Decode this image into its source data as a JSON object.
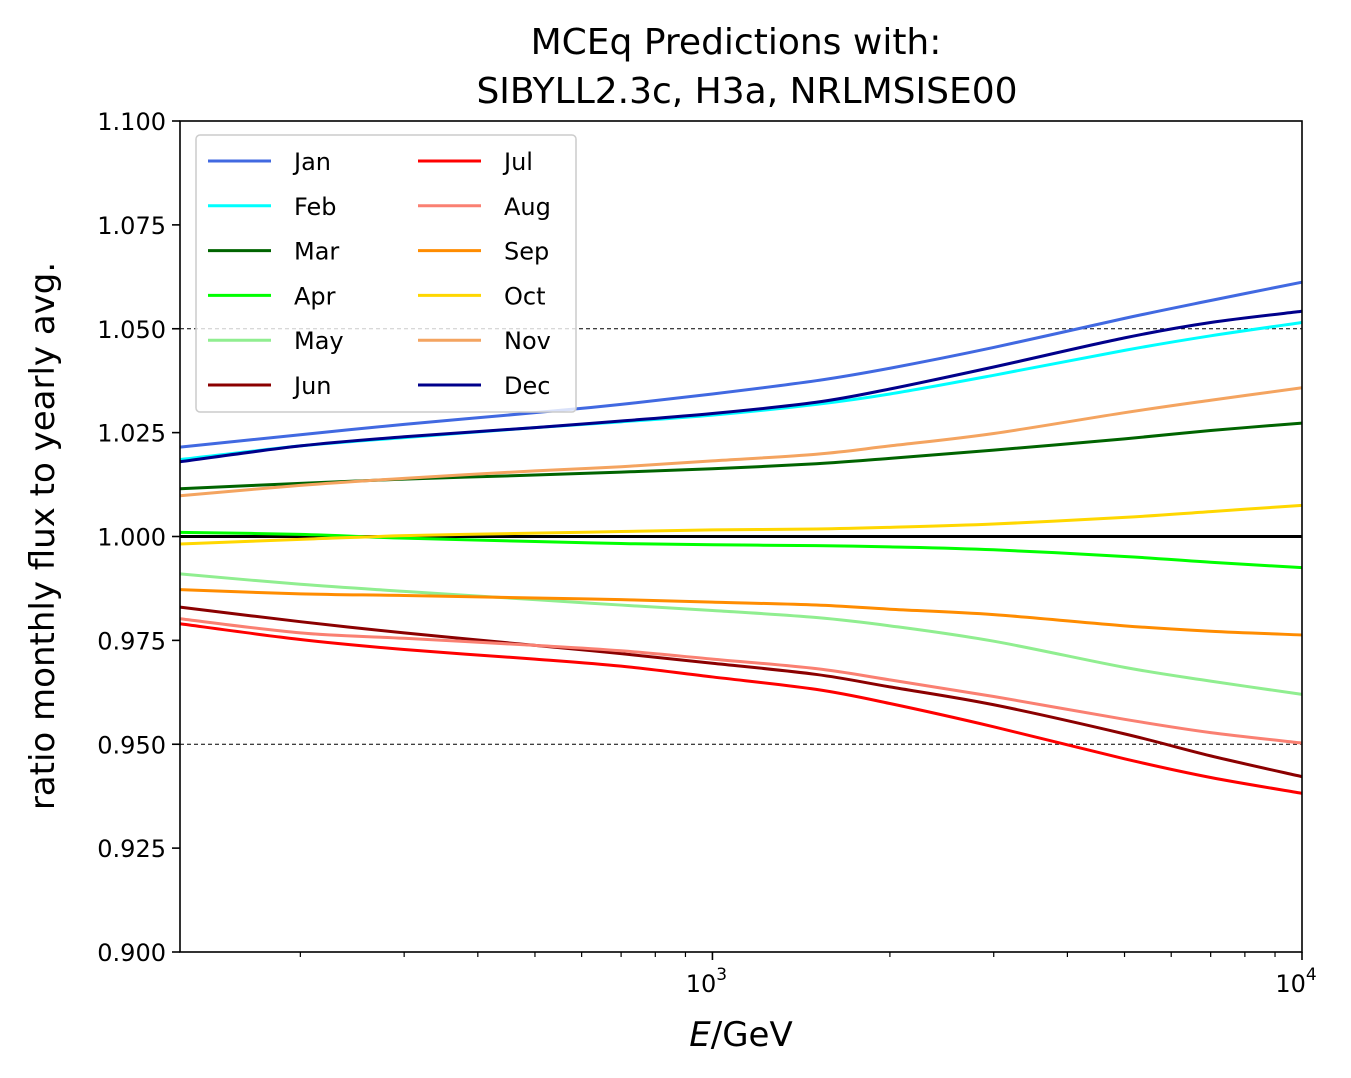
{
  "chart_data": {
    "type": "line",
    "title_line1": "MCEq Predictions with:",
    "title_line2": "SIBYLL2.3c, H3a, NRLMSISE00",
    "xlabel_italic": "E",
    "xlabel_rest": "/GeV",
    "ylabel": "ratio monthly flux to yearly avg.",
    "xscale": "log",
    "xlim": [
      125,
      10000
    ],
    "ylim": [
      0.9,
      1.1
    ],
    "yticks": [
      {
        "value": 0.9,
        "label": "0.900"
      },
      {
        "value": 0.925,
        "label": "0.925"
      },
      {
        "value": 0.95,
        "label": "0.950"
      },
      {
        "value": 0.975,
        "label": "0.975"
      },
      {
        "value": 1.0,
        "label": "1.000"
      },
      {
        "value": 1.025,
        "label": "1.025"
      },
      {
        "value": 1.05,
        "label": "1.050"
      },
      {
        "value": 1.075,
        "label": "1.075"
      },
      {
        "value": 1.1,
        "label": "1.100"
      }
    ],
    "xticks": [
      {
        "value": 1000,
        "base": "10",
        "exp": "3"
      },
      {
        "value": 10000,
        "base": "10",
        "exp": "4"
      }
    ],
    "reference_lines": [
      {
        "y": 1.05,
        "style": "dashed",
        "color": "#000000"
      },
      {
        "y": 0.95,
        "style": "dashed",
        "color": "#000000"
      },
      {
        "y": 1.0,
        "style": "solid",
        "color": "#000000"
      }
    ],
    "legend": {
      "placement": "upper-left",
      "columns": 2
    },
    "x": [
      125,
      200,
      300,
      500,
      700,
      1000,
      1500,
      2000,
      3000,
      5000,
      7000,
      10000
    ],
    "series": [
      {
        "name": "Jan",
        "color": "#4169E1",
        "values": [
          1.0215,
          1.0245,
          1.027,
          1.0298,
          1.0318,
          1.0343,
          1.0375,
          1.0405,
          1.0455,
          1.0525,
          1.0568,
          1.0612
        ]
      },
      {
        "name": "Feb",
        "color": "#00FFFF",
        "values": [
          1.0185,
          1.0218,
          1.0238,
          1.0262,
          1.0276,
          1.0292,
          1.0318,
          1.0343,
          1.0388,
          1.0448,
          1.0483,
          1.0515
        ]
      },
      {
        "name": "Mar",
        "color": "#006400",
        "values": [
          1.0115,
          1.0128,
          1.0138,
          1.0148,
          1.0155,
          1.0163,
          1.0175,
          1.0188,
          1.0208,
          1.0235,
          1.0255,
          1.0273
        ]
      },
      {
        "name": "Apr",
        "color": "#00FF00",
        "values": [
          1.001,
          1.0005,
          0.9996,
          0.9988,
          0.9983,
          0.998,
          0.9978,
          0.9975,
          0.9968,
          0.9952,
          0.9938,
          0.9925
        ]
      },
      {
        "name": "May",
        "color": "#90EE90",
        "values": [
          0.991,
          0.9885,
          0.9868,
          0.9848,
          0.9835,
          0.9822,
          0.9805,
          0.9785,
          0.9748,
          0.9685,
          0.9652,
          0.962
        ]
      },
      {
        "name": "Jun",
        "color": "#8B0000",
        "values": [
          0.983,
          0.9795,
          0.9768,
          0.9738,
          0.9718,
          0.9695,
          0.9668,
          0.9638,
          0.9595,
          0.9525,
          0.9472,
          0.9422
        ]
      },
      {
        "name": "Jul",
        "color": "#FF0000",
        "values": [
          0.979,
          0.9752,
          0.9728,
          0.9705,
          0.9688,
          0.9662,
          0.9632,
          0.9598,
          0.9542,
          0.9465,
          0.942,
          0.9382
        ]
      },
      {
        "name": "Aug",
        "color": "#FA8072",
        "values": [
          0.9802,
          0.9768,
          0.9755,
          0.9738,
          0.9725,
          0.9705,
          0.9682,
          0.9655,
          0.9615,
          0.956,
          0.9528,
          0.9503
        ]
      },
      {
        "name": "Sep",
        "color": "#FF8C00",
        "values": [
          0.9872,
          0.9862,
          0.9858,
          0.9852,
          0.9848,
          0.9842,
          0.9835,
          0.9825,
          0.9812,
          0.9785,
          0.9772,
          0.9763
        ]
      },
      {
        "name": "Oct",
        "color": "#FFD700",
        "values": [
          0.9982,
          0.9993,
          1.0002,
          1.0008,
          1.0012,
          1.0016,
          1.0018,
          1.0022,
          1.003,
          1.0046,
          1.006,
          1.0075
        ]
      },
      {
        "name": "Nov",
        "color": "#F4A460",
        "values": [
          1.0098,
          1.0123,
          1.014,
          1.0158,
          1.0168,
          1.0182,
          1.0198,
          1.0218,
          1.0248,
          1.0298,
          1.0328,
          1.0358
        ]
      },
      {
        "name": "Dec",
        "color": "#00008B",
        "values": [
          1.018,
          1.0218,
          1.024,
          1.0262,
          1.0278,
          1.0296,
          1.0323,
          1.0355,
          1.0408,
          1.0478,
          1.0515,
          1.0542
        ]
      }
    ]
  }
}
